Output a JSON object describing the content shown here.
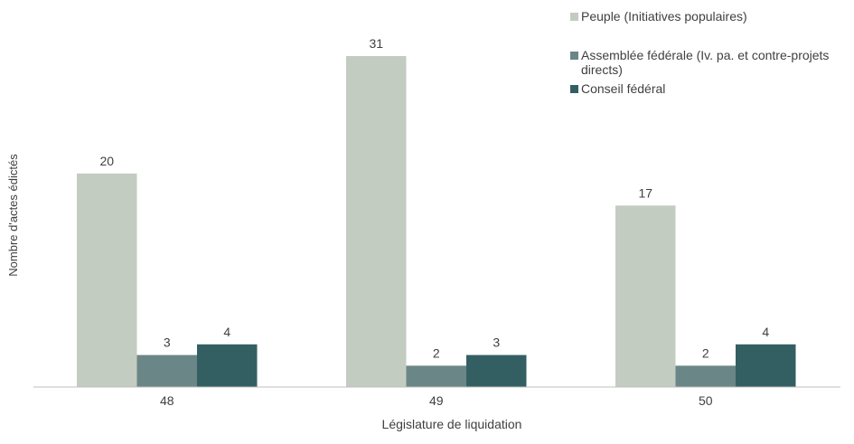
{
  "chart_data": {
    "type": "bar",
    "title": "",
    "xlabel": "Législature de liquidation",
    "ylabel": "Nombre d'actes édictés",
    "categories": [
      "48",
      "49",
      "50"
    ],
    "series": [
      {
        "name": "Peuple (Initiatives populaires)",
        "values": [
          20,
          31,
          17
        ],
        "color": "#c3ccc1"
      },
      {
        "name": "Assemblée fédérale (Iv. pa. et contre-projets directs)",
        "values": [
          3,
          2,
          2
        ],
        "color": "#6b8686"
      },
      {
        "name": "Conseil fédéral",
        "values": [
          4,
          3,
          4
        ],
        "color": "#335f63"
      }
    ],
    "ylim": [
      0,
      31
    ],
    "grid": false,
    "legend": "top-right",
    "data_labels": true
  }
}
